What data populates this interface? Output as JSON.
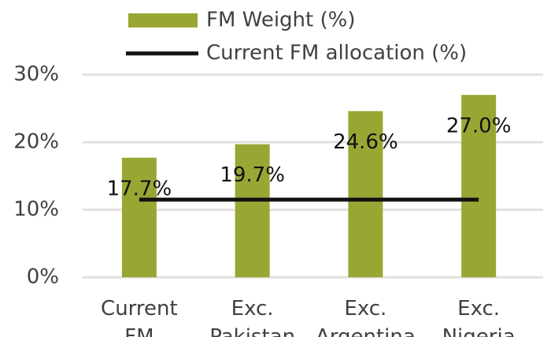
{
  "chart_data": {
    "type": "bar",
    "categories": [
      "Current FM",
      "Exc. Pakistan",
      "Exc. Argentina",
      "Exc. Nigeria"
    ],
    "series": [
      {
        "name": "FM Weight (%)",
        "color": "#9aa634",
        "type": "bar",
        "values": [
          17.7,
          19.7,
          24.6,
          27.0
        ],
        "value_labels": [
          "17.7%",
          "19.7%",
          "24.6%",
          "27.0%"
        ]
      },
      {
        "name": "Current FM allocation (%)",
        "color": "#111111",
        "type": "line",
        "values": [
          11.5,
          11.5,
          11.5,
          11.5
        ]
      }
    ],
    "ylim": [
      0,
      30
    ],
    "yticks": [
      {
        "value": 0,
        "label": "0%"
      },
      {
        "value": 10,
        "label": "10%"
      },
      {
        "value": 20,
        "label": "20%"
      },
      {
        "value": 30,
        "label": "30%"
      }
    ],
    "grid": true,
    "legend": "top"
  }
}
